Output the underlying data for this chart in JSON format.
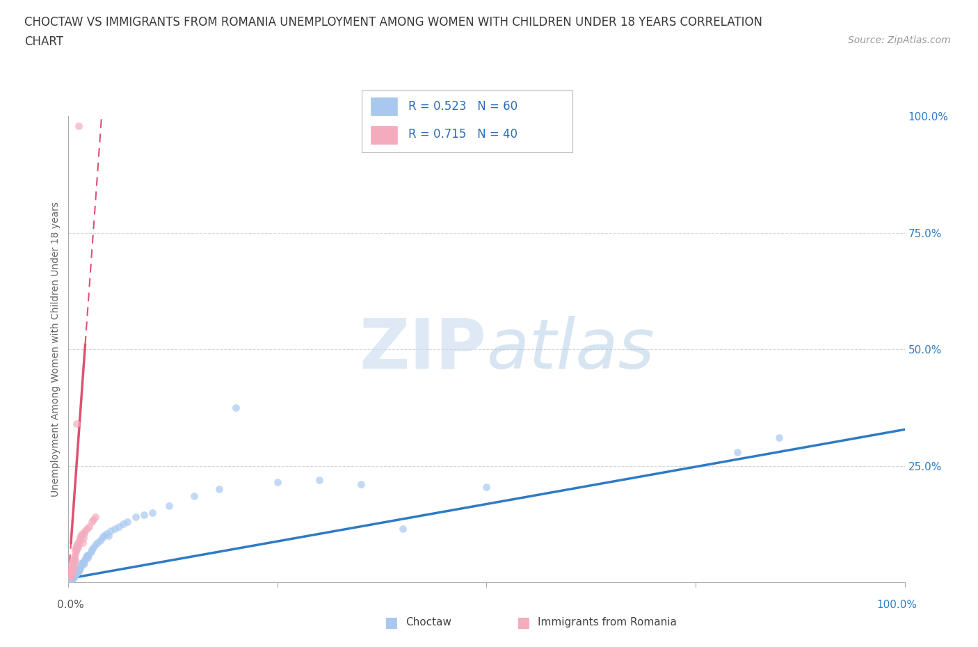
{
  "title_line1": "CHOCTAW VS IMMIGRANTS FROM ROMANIA UNEMPLOYMENT AMONG WOMEN WITH CHILDREN UNDER 18 YEARS CORRELATION",
  "title_line2": "CHART",
  "source_text": "Source: ZipAtlas.com",
  "ylabel": "Unemployment Among Women with Children Under 18 years",
  "watermark": "ZIPatlas",
  "R_choctaw": "R = 0.523",
  "N_choctaw": "N = 60",
  "R_romania": "R = 0.715",
  "N_romania": "N = 40",
  "choctaw_color": "#A8C8F0",
  "romania_color": "#F4ABBE",
  "trendline_choctaw_color": "#2E7BC4",
  "trendline_romania_color": "#E05070",
  "legend_text_color": "#2E6CB5",
  "title_color": "#3A3A3A",
  "grid_color": "#CCCCCC",
  "background_color": "#FFFFFF",
  "right_tick_color": "#2E7BC4",
  "xlim": [
    0,
    1.0
  ],
  "ylim": [
    0,
    1.0
  ],
  "choctaw_x": [
    0.003,
    0.004,
    0.004,
    0.005,
    0.005,
    0.006,
    0.006,
    0.007,
    0.007,
    0.008,
    0.008,
    0.009,
    0.009,
    0.01,
    0.01,
    0.011,
    0.012,
    0.012,
    0.013,
    0.014,
    0.015,
    0.015,
    0.016,
    0.017,
    0.018,
    0.019,
    0.02,
    0.021,
    0.022,
    0.023,
    0.025,
    0.027,
    0.028,
    0.03,
    0.032,
    0.035,
    0.038,
    0.04,
    0.042,
    0.045,
    0.048,
    0.05,
    0.055,
    0.06,
    0.065,
    0.07,
    0.08,
    0.09,
    0.1,
    0.12,
    0.15,
    0.18,
    0.2,
    0.25,
    0.3,
    0.35,
    0.4,
    0.5,
    0.8,
    0.85
  ],
  "choctaw_y": [
    0.005,
    0.005,
    0.01,
    0.008,
    0.012,
    0.01,
    0.015,
    0.012,
    0.018,
    0.015,
    0.02,
    0.018,
    0.022,
    0.02,
    0.025,
    0.022,
    0.028,
    0.03,
    0.025,
    0.03,
    0.035,
    0.04,
    0.038,
    0.042,
    0.045,
    0.04,
    0.05,
    0.055,
    0.058,
    0.052,
    0.06,
    0.065,
    0.07,
    0.075,
    0.08,
    0.085,
    0.09,
    0.095,
    0.1,
    0.105,
    0.1,
    0.11,
    0.115,
    0.12,
    0.125,
    0.13,
    0.14,
    0.145,
    0.15,
    0.165,
    0.185,
    0.2,
    0.375,
    0.215,
    0.22,
    0.21,
    0.115,
    0.205,
    0.28,
    0.31
  ],
  "romania_x": [
    0.002,
    0.002,
    0.003,
    0.003,
    0.004,
    0.004,
    0.004,
    0.005,
    0.005,
    0.005,
    0.006,
    0.006,
    0.006,
    0.007,
    0.007,
    0.008,
    0.008,
    0.008,
    0.009,
    0.009,
    0.01,
    0.01,
    0.011,
    0.011,
    0.012,
    0.013,
    0.014,
    0.015,
    0.016,
    0.017,
    0.018,
    0.019,
    0.02,
    0.022,
    0.025,
    0.028,
    0.03,
    0.032,
    0.01,
    0.012
  ],
  "romania_y": [
    0.01,
    0.02,
    0.015,
    0.025,
    0.02,
    0.03,
    0.04,
    0.025,
    0.035,
    0.045,
    0.03,
    0.04,
    0.05,
    0.045,
    0.055,
    0.05,
    0.06,
    0.07,
    0.065,
    0.075,
    0.07,
    0.08,
    0.075,
    0.085,
    0.08,
    0.09,
    0.095,
    0.1,
    0.105,
    0.085,
    0.095,
    0.105,
    0.11,
    0.115,
    0.12,
    0.13,
    0.135,
    0.14,
    0.34,
    0.98
  ]
}
